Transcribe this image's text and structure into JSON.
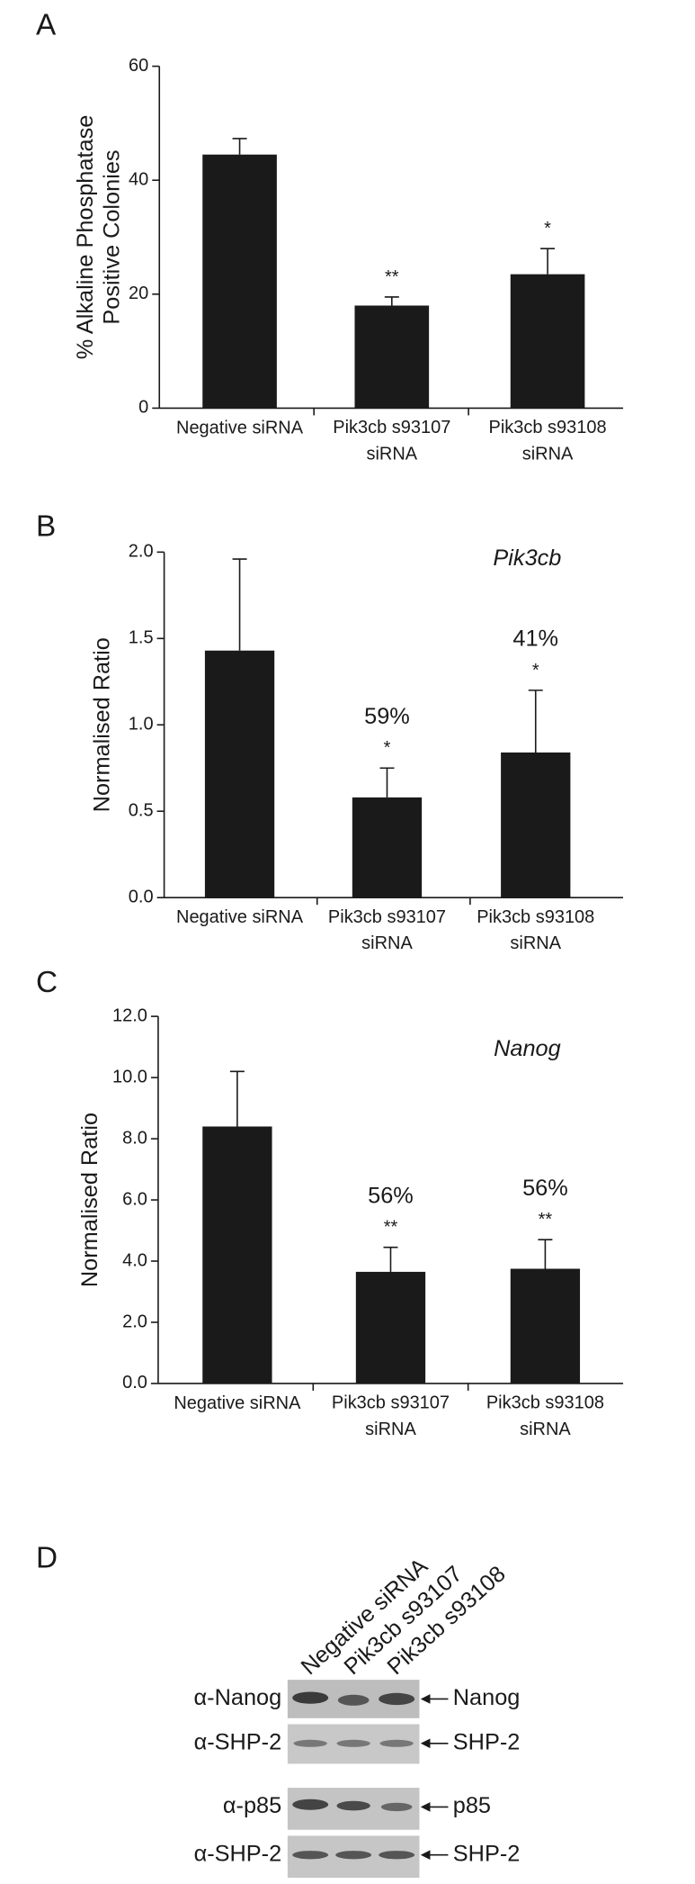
{
  "chart_data": [
    {
      "type": "bar",
      "panel": "A",
      "ylabel": "% Alkaline Phosphatase\nPositive Colonies",
      "categories": [
        "Negative siRNA",
        "Pik3cb s93107\nsiRNA",
        "Pik3cb s93108\nsiRNA"
      ],
      "values": [
        44.5,
        18,
        23.5
      ],
      "errors": [
        2.8,
        1.5,
        4.5
      ],
      "significance": [
        null,
        "**",
        "*"
      ],
      "color": "#1a1a1a",
      "ylim": [
        0,
        60
      ],
      "yticks": [
        0,
        20,
        40,
        60
      ]
    },
    {
      "type": "bar",
      "panel": "B",
      "ylabel": "Normalised Ratio",
      "gene": "Pik3cb",
      "categories": [
        "Negative siRNA",
        "Pik3cb s93107\nsiRNA",
        "Pik3cb s93108\nsiRNA"
      ],
      "values": [
        1.43,
        0.58,
        0.84
      ],
      "errors": [
        0.53,
        0.17,
        0.36
      ],
      "significance": [
        null,
        "*",
        "*"
      ],
      "knockdown": [
        null,
        "59%",
        "41%"
      ],
      "color": "#1a1a1a",
      "ylim": [
        0,
        2.0
      ],
      "yticks": [
        {
          "value": 0,
          "label": "0.0"
        },
        {
          "value": 0.5,
          "label": "0.5"
        },
        {
          "value": 1,
          "label": "1.0"
        },
        {
          "value": 1.5,
          "label": "1.5"
        },
        {
          "value": 2,
          "label": "2.0"
        }
      ]
    },
    {
      "type": "bar",
      "panel": "C",
      "ylabel": "Normalised Ratio",
      "gene": "Nanog",
      "categories": [
        "Negative siRNA",
        "Pik3cb s93107\nsiRNA",
        "Pik3cb s93108\nsiRNA"
      ],
      "values": [
        8.4,
        3.65,
        3.75
      ],
      "errors": [
        1.8,
        0.8,
        0.95
      ],
      "significance": [
        null,
        "**",
        "**"
      ],
      "knockdown": [
        null,
        "56%",
        "56%"
      ],
      "color": "#1a1a1a",
      "ylim": [
        0,
        12
      ],
      "yticks": [
        {
          "value": 0,
          "label": "0.0"
        },
        {
          "value": 2,
          "label": "2.0"
        },
        {
          "value": 4,
          "label": "4.0"
        },
        {
          "value": 6,
          "label": "6.0"
        },
        {
          "value": 8,
          "label": "8.0"
        },
        {
          "value": 10,
          "label": "10.0"
        },
        {
          "value": 12,
          "label": "12.0"
        }
      ]
    }
  ],
  "blot": {
    "panel": "D",
    "lanes": [
      "Negative siRNA",
      "Pik3cb s93107",
      "Pik3cb s93108"
    ],
    "rows": [
      {
        "antibody": "α-Nanog",
        "band": "Nanog"
      },
      {
        "antibody": "α-SHP-2",
        "band": "SHP-2"
      },
      {
        "antibody": "α-p85",
        "band": "p85"
      },
      {
        "antibody": "α-SHP-2",
        "band": "SHP-2"
      }
    ]
  }
}
